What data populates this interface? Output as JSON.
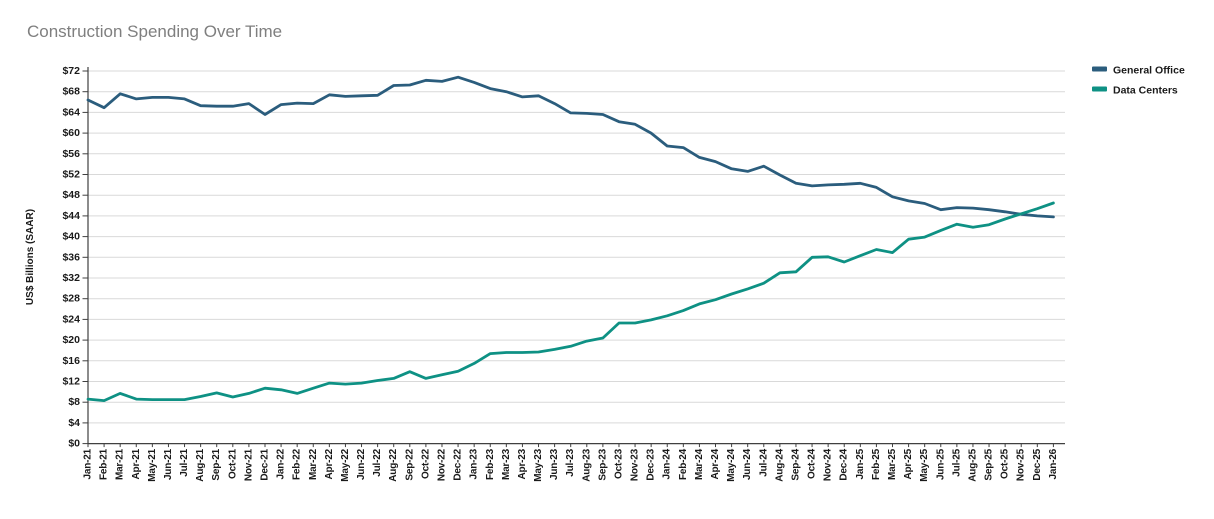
{
  "title": "Construction Spending Over Time",
  "colors": {
    "general_office": "#2B5D7D",
    "data_centers": "#0E9184",
    "title_text": "#7f7f7f",
    "gridline": "#d9d9d9",
    "axis": "#404040",
    "background": "#ffffff"
  },
  "chart_data": {
    "type": "line",
    "title": "Construction Spending Over Time",
    "xlabel": "",
    "ylabel": "US$ Billions (SAAR)",
    "ylim": [
      0,
      72
    ],
    "ytick_step": 4,
    "ytick_labels": [
      "$0",
      "$4",
      "$8",
      "$12",
      "$16",
      "$20",
      "$24",
      "$28",
      "$32",
      "$36",
      "$40",
      "$44",
      "$48",
      "$52",
      "$56",
      "$60",
      "$64",
      "$68",
      "$72"
    ],
    "grid": "horizontal",
    "legend_position": "top-right",
    "categories": [
      "Jan-21",
      "Feb-21",
      "Mar-21",
      "Apr-21",
      "May-21",
      "Jun-21",
      "Jul-21",
      "Aug-21",
      "Sep-21",
      "Oct-21",
      "Nov-21",
      "Dec-21",
      "Jan-22",
      "Feb-22",
      "Mar-22",
      "Apr-22",
      "May-22",
      "Jun-22",
      "Jul-22",
      "Aug-22",
      "Sep-22",
      "Oct-22",
      "Nov-22",
      "Dec-22",
      "Jan-23",
      "Feb-23",
      "Mar-23",
      "Apr-23",
      "May-23",
      "Jun-23",
      "Jul-23",
      "Aug-23",
      "Sep-23",
      "Oct-23",
      "Nov-23",
      "Dec-23",
      "Jan-24",
      "Feb-24",
      "Mar-24",
      "Apr-24",
      "May-24",
      "Jun-24",
      "Jul-24",
      "Aug-24",
      "Sep-24",
      "Oct-24",
      "Nov-24",
      "Dec-24",
      "Jan-25",
      "Feb-25",
      "Mar-25",
      "Apr-25",
      "May-25",
      "Jun-25",
      "Jul-25",
      "Aug-25",
      "Sep-25",
      "Oct-25",
      "Nov-25",
      "Dec-25",
      "Jan-26"
    ],
    "series": [
      {
        "name": "General Office",
        "color": "#2B5D7D",
        "values": [
          66.4,
          64.9,
          67.6,
          66.6,
          66.9,
          66.9,
          66.6,
          65.3,
          65.2,
          65.2,
          65.7,
          63.6,
          65.5,
          65.8,
          65.7,
          67.4,
          67.1,
          67.2,
          67.3,
          69.2,
          69.3,
          70.2,
          70.0,
          70.8,
          69.8,
          68.6,
          68.0,
          67.0,
          67.2,
          65.7,
          63.9,
          63.8,
          63.6,
          62.2,
          61.7,
          60.0,
          57.5,
          57.2,
          55.3,
          54.5,
          53.1,
          52.6,
          53.6,
          51.9,
          50.3,
          49.8,
          50.0,
          50.1,
          50.3,
          49.5,
          47.7,
          46.9,
          46.4,
          45.2,
          45.6,
          45.5,
          45.2,
          44.8,
          44.3,
          44.0,
          43.8
        ]
      },
      {
        "name": "Data Centers",
        "color": "#0E9184",
        "values": [
          8.6,
          8.3,
          9.7,
          8.6,
          8.5,
          8.5,
          8.5,
          9.1,
          9.8,
          9.0,
          9.7,
          10.7,
          10.4,
          9.7,
          10.7,
          11.7,
          11.5,
          11.7,
          12.2,
          12.6,
          13.9,
          12.6,
          13.3,
          14.0,
          15.5,
          17.4,
          17.6,
          17.6,
          17.7,
          18.2,
          18.8,
          19.8,
          20.4,
          23.3,
          23.3,
          23.9,
          24.7,
          25.7,
          27.0,
          27.8,
          28.9,
          29.9,
          31.0,
          33.0,
          33.2,
          36.0,
          36.1,
          35.1,
          36.3,
          37.5,
          36.9,
          39.5,
          39.9,
          41.2,
          42.4,
          41.8,
          42.3,
          43.4,
          44.4,
          45.4,
          46.5
        ]
      }
    ]
  }
}
